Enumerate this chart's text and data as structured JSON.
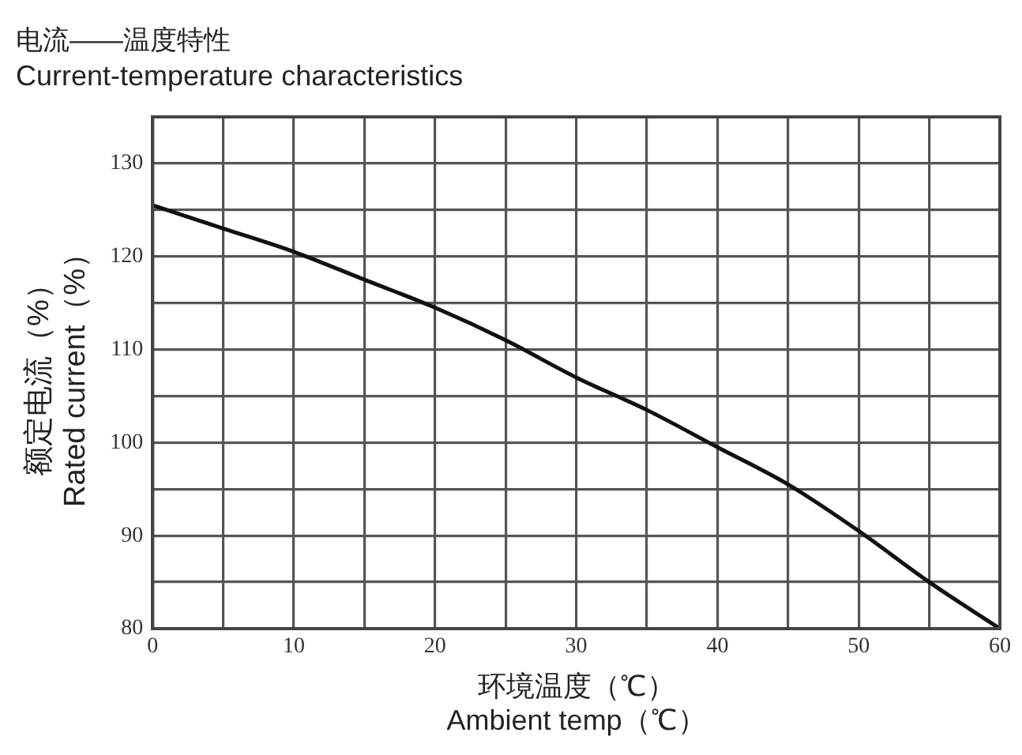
{
  "chart_data": {
    "type": "line",
    "title": "电流——温度特性",
    "subtitle": "Current-temperature characteristics",
    "xlabel": "环境温度（℃）\nAmbient temp（℃）",
    "ylabel": "额定电流（%）\nRated current（%）",
    "x": [
      0,
      5,
      10,
      15,
      20,
      25,
      30,
      35,
      40,
      45,
      50,
      55,
      60
    ],
    "series": [
      {
        "color": "#111111",
        "values": [
          125.5,
          123,
          120.5,
          117.5,
          114.5,
          111,
          107,
          103.5,
          99.5,
          95.5,
          90.5,
          85,
          80
        ]
      }
    ],
    "xlim": [
      0,
      60
    ],
    "xticks": [
      0,
      {
        "value": 5,
        "label": null
      },
      10,
      {
        "value": 15,
        "label": null
      },
      20,
      {
        "value": 25,
        "label": null
      },
      30,
      {
        "value": 35,
        "label": null
      },
      40,
      {
        "value": 45,
        "label": null
      },
      50,
      {
        "value": 55,
        "label": null
      },
      60
    ],
    "ylim": [
      80,
      135
    ],
    "yticks": [
      80,
      {
        "value": 85,
        "label": null
      },
      90,
      {
        "value": 95,
        "label": null
      },
      100,
      {
        "value": 105,
        "label": null
      },
      110,
      {
        "value": 115,
        "label": null
      },
      120,
      {
        "value": 125,
        "label": null
      },
      130,
      {
        "value": 135,
        "label": null
      }
    ],
    "grid": true,
    "legend": false,
    "marker": "none",
    "line_style": "solid"
  }
}
